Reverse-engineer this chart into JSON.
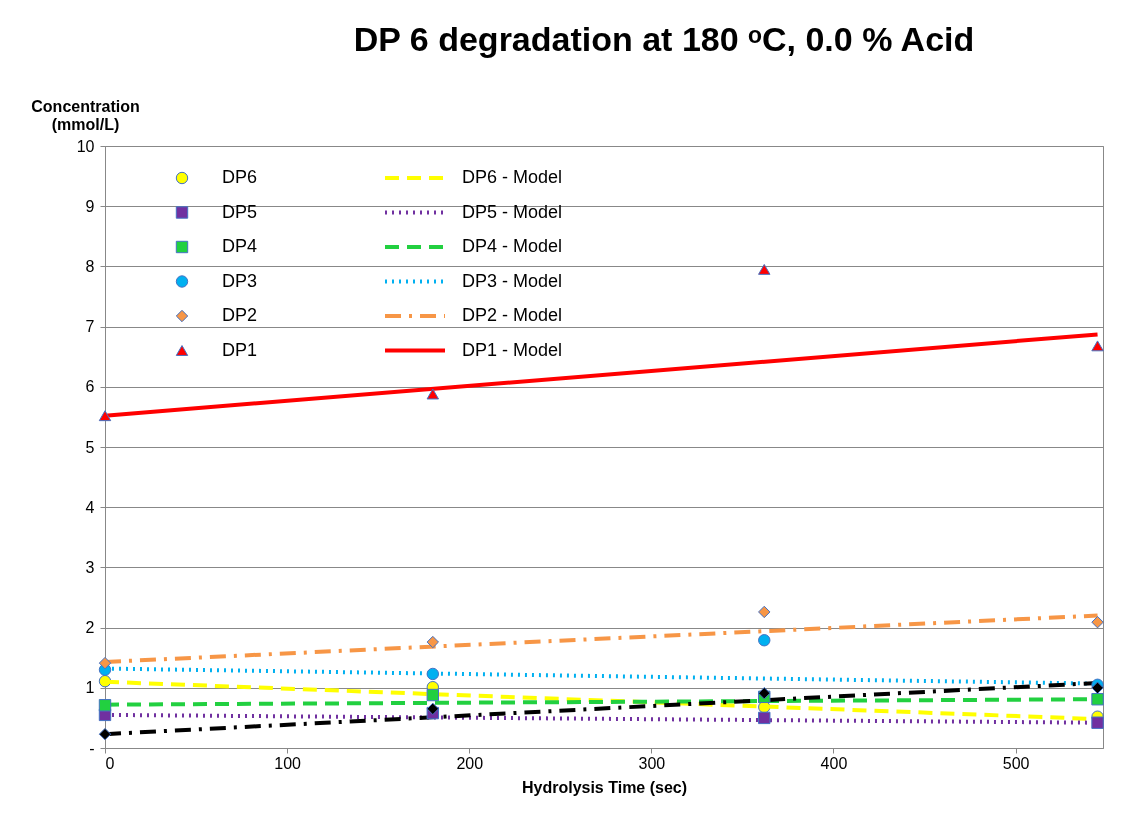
{
  "chart_data": {
    "type": "scatter",
    "title": "DP 6 degradation at 180 ᵒC, 0.0 % Acid",
    "xlabel": "Hydrolysis Time (sec)",
    "ylabel": "Concentration\n(mmol/L)",
    "xlim": [
      0,
      548
    ],
    "xticks": [
      0,
      100,
      200,
      300,
      400,
      500
    ],
    "ylim": [
      0,
      10
    ],
    "yticks": [
      {
        "value": 0,
        "label": "-"
      },
      1,
      2,
      3,
      4,
      5,
      6,
      7,
      8,
      9,
      10
    ],
    "grid": "y",
    "legend": "top left",
    "series": [
      {
        "name": "DP6",
        "marker": "circle",
        "color": "#ffff00",
        "x": [
          0,
          180,
          362,
          545
        ],
        "values": [
          1.11,
          1.01,
          0.68,
          0.52
        ]
      },
      {
        "name": "DP5",
        "marker": "square",
        "color": "#7030a0",
        "x": [
          0,
          180,
          362,
          545
        ],
        "values": [
          0.55,
          0.58,
          0.5,
          0.42
        ]
      },
      {
        "name": "DP4",
        "marker": "square",
        "color": "#22d040",
        "x": [
          0,
          180,
          362,
          545
        ],
        "values": [
          0.71,
          0.88,
          0.85,
          0.81
        ]
      },
      {
        "name": "DP3",
        "marker": "circle",
        "color": "#00b0f0",
        "x": [
          0,
          180,
          362,
          545
        ],
        "values": [
          1.3,
          1.23,
          1.79,
          1.05
        ]
      },
      {
        "name": "DP2",
        "marker": "diamond",
        "color": "#f79646",
        "x": [
          0,
          180,
          362,
          545
        ],
        "values": [
          1.41,
          1.76,
          2.26,
          2.09
        ]
      },
      {
        "name": "DP1",
        "marker": "triangle",
        "color": "#ff0000",
        "x": [
          0,
          180,
          362,
          545
        ],
        "values": [
          5.52,
          5.88,
          7.95,
          6.68
        ]
      },
      {
        "marker": "diamond",
        "color": "#000000",
        "x": [
          0,
          180,
          362,
          545
        ],
        "values": [
          0.23,
          0.65,
          0.91,
          1.0
        ]
      },
      {
        "name": "DP6 - Model",
        "type": "line",
        "line_style": "dashed",
        "color": "#ffff00",
        "x": [
          0,
          545
        ],
        "values": [
          1.1,
          0.48
        ]
      },
      {
        "name": "DP5 - Model",
        "type": "line",
        "line_style": "dotted",
        "color": "#7030a0",
        "x": [
          0,
          545
        ],
        "values": [
          0.55,
          0.42
        ]
      },
      {
        "name": "DP4 - Model",
        "type": "line",
        "line_style": "dashed",
        "color": "#22d040",
        "x": [
          0,
          545
        ],
        "values": [
          0.72,
          0.81
        ]
      },
      {
        "name": "DP3 - Model",
        "type": "line",
        "line_style": "dotted",
        "color": "#00b0f0",
        "x": [
          0,
          545
        ],
        "values": [
          1.32,
          1.07
        ]
      },
      {
        "name": "DP2 - Model",
        "type": "line",
        "line_style": "dashdot",
        "color": "#f79646",
        "x": [
          0,
          545
        ],
        "values": [
          1.43,
          2.2
        ]
      },
      {
        "name": "DP1 - Model",
        "type": "line",
        "line_style": "solid",
        "color": "#ff0000",
        "x": [
          0,
          545
        ],
        "values": [
          5.52,
          6.87
        ]
      },
      {
        "type": "line",
        "line_style": "dashdot",
        "color": "#000000",
        "x": [
          0,
          545
        ],
        "values": [
          0.23,
          1.08
        ]
      }
    ]
  }
}
